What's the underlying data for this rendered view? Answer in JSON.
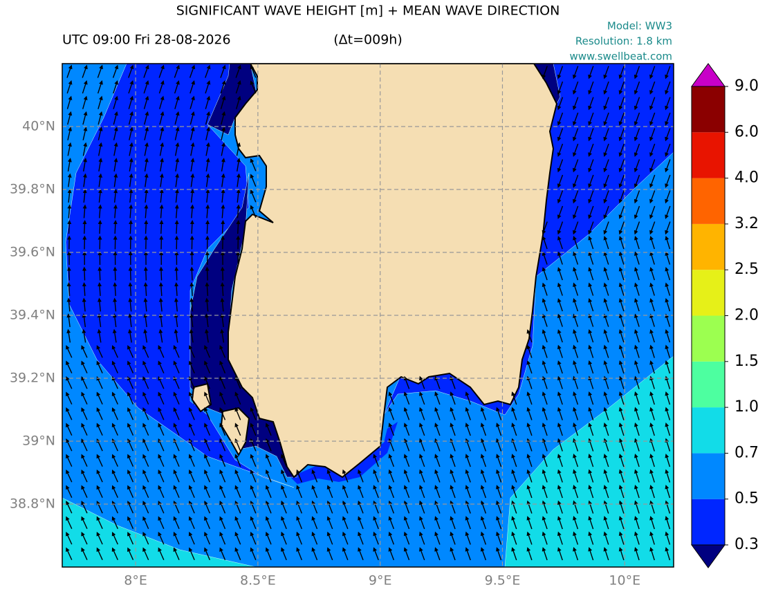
{
  "header": {
    "title": "SIGNIFICANT WAVE HEIGHT [m] + MEAN WAVE DIRECTION",
    "time": "UTC 09:00 Fri 28-08-2026",
    "delta": "(Δt=009h)",
    "model": "Model: WW3",
    "resolution": "Resolution: 1.8 km",
    "website": "www.swellbeat.com"
  },
  "map": {
    "xlim": [
      7.7,
      10.2
    ],
    "ylim": [
      38.6,
      40.2
    ],
    "grid": true,
    "xticks": [
      {
        "value": 8,
        "label": "8°E"
      },
      {
        "value": 8.5,
        "label": "8.5°E"
      },
      {
        "value": 9,
        "label": "9°E"
      },
      {
        "value": 9.5,
        "label": "9.5°E"
      },
      {
        "value": 10,
        "label": "10°E"
      }
    ],
    "yticks": [
      {
        "value": 38.8,
        "label": "38.8°N"
      },
      {
        "value": 39,
        "label": "39°N"
      },
      {
        "value": 39.2,
        "label": "39.2°N"
      },
      {
        "value": 39.4,
        "label": "39.4°N"
      },
      {
        "value": 39.6,
        "label": "39.6°N"
      },
      {
        "value": 39.8,
        "label": "39.8°N"
      },
      {
        "value": 40,
        "label": "40°N"
      }
    ]
  },
  "colorbar": {
    "levels": [
      0.3,
      0.5,
      0.7,
      {
        "value": 1.0,
        "label": "1.0"
      },
      1.5,
      {
        "value": 2.0,
        "label": "2.0"
      },
      2.5,
      3.2,
      {
        "value": 4.0,
        "label": "4.0"
      },
      {
        "value": 6.0,
        "label": "6.0"
      },
      {
        "value": 9.0,
        "label": "9.0"
      }
    ],
    "colors": [
      "#0026ff",
      "#0088ff",
      "#12dce8",
      "#4dffa0",
      "#9cff50",
      "#e6f018",
      "#ffb400",
      "#ff6400",
      "#e81400",
      "#8b0000"
    ],
    "under_color": "#000080",
    "over_color": "#c800c8"
  }
}
